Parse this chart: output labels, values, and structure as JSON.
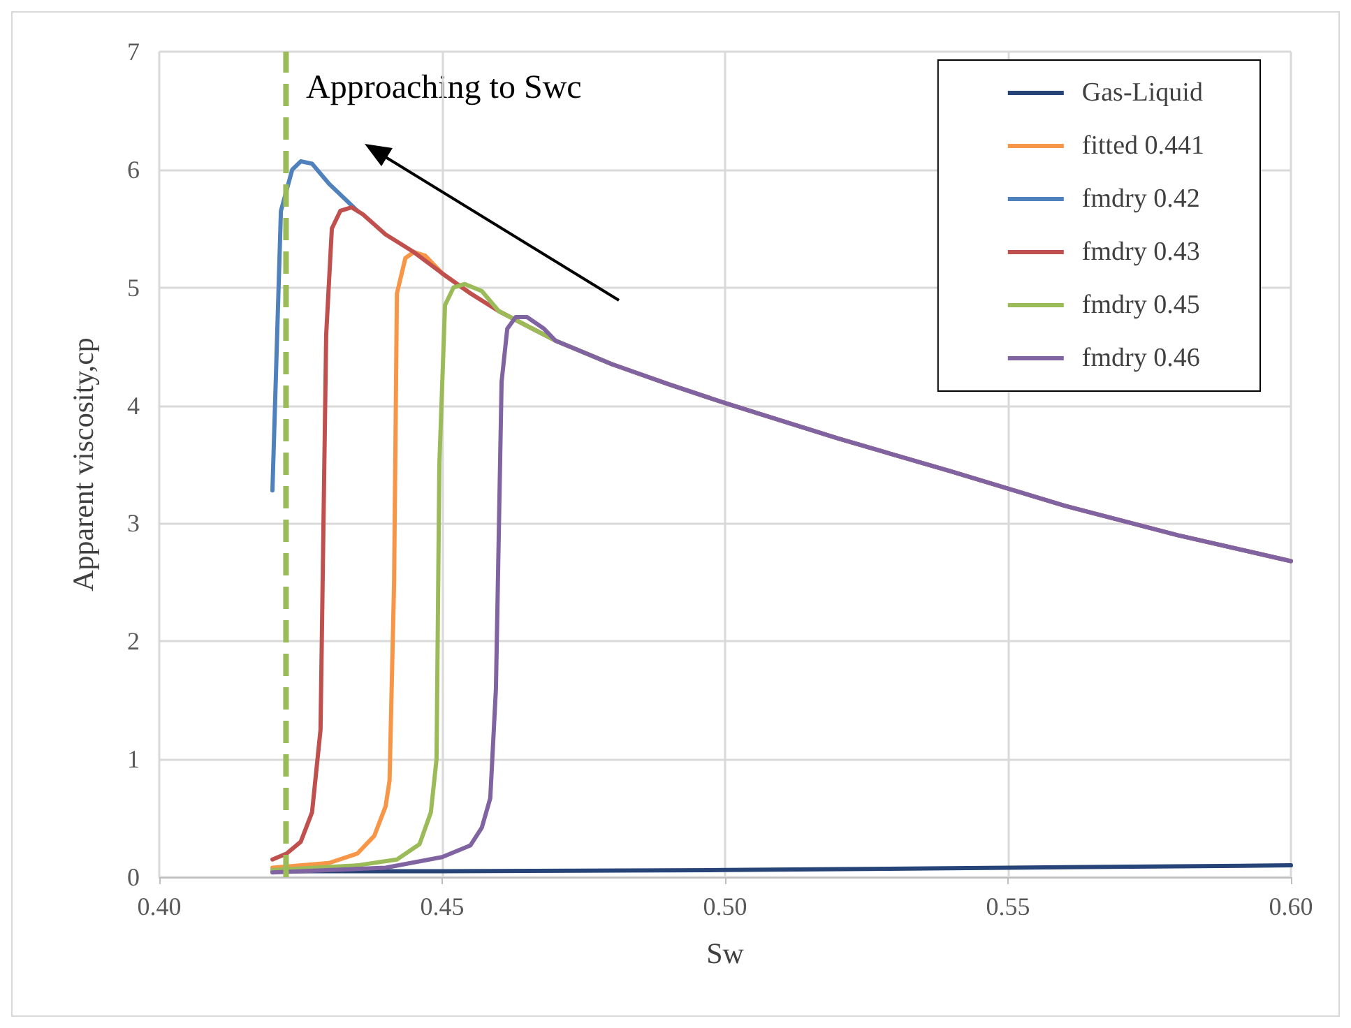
{
  "chart_data": {
    "type": "line",
    "xlabel": "Sw",
    "ylabel": "Apparent viscosity,cp",
    "xlim": [
      0.4,
      0.6
    ],
    "xticks": [
      {
        "value": 0.4,
        "label": "0.40"
      },
      {
        "value": 0.45,
        "label": "0.45"
      },
      {
        "value": 0.5,
        "label": "0.50"
      },
      {
        "value": 0.55,
        "label": "0.55"
      },
      {
        "value": 0.6,
        "label": "0.60"
      }
    ],
    "ylim": [
      0,
      7
    ],
    "yticks": [
      0,
      1,
      2,
      3,
      4,
      5,
      6,
      7
    ],
    "grid": true,
    "legend": "top right",
    "marker": "none",
    "line_style": "solid",
    "annotations": [
      "Approaching to Swc"
    ],
    "ref_lines": [
      {
        "axis": "x",
        "value": 0.4224,
        "color": "#9bbb59",
        "line_style": "dashed"
      }
    ],
    "series": [
      {
        "name": "Gas-Liquid",
        "color": "#264478",
        "x": [
          0.42,
          0.45,
          0.5,
          0.55,
          0.6
        ],
        "values": [
          0.05,
          0.05,
          0.06,
          0.08,
          0.1
        ]
      },
      {
        "name": "fitted 0.441",
        "color": "#f79646",
        "x": [
          0.42,
          0.43,
          0.435,
          0.438,
          0.44,
          0.4407,
          0.4415,
          0.442,
          0.4435,
          0.445,
          0.447,
          0.45,
          0.455
        ],
        "values": [
          0.08,
          0.12,
          0.2,
          0.35,
          0.6,
          0.82,
          2.5,
          4.95,
          5.25,
          5.3,
          5.27,
          5.12,
          4.95
        ]
      },
      {
        "name": "fmdry 0.42",
        "color": "#4f81bd",
        "x": [
          0.42,
          0.4215,
          0.4235,
          0.425,
          0.427,
          0.43,
          0.435
        ],
        "values": [
          3.28,
          5.65,
          6.0,
          6.07,
          6.05,
          5.88,
          5.65
        ]
      },
      {
        "name": "fmdry 0.43",
        "color": "#c0504d",
        "x": [
          0.42,
          0.4225,
          0.425,
          0.427,
          0.4285,
          0.4295,
          0.4305,
          0.432,
          0.434,
          0.436,
          0.44,
          0.445,
          0.45,
          0.455,
          0.46,
          0.47,
          0.48,
          0.49,
          0.5,
          0.52,
          0.54,
          0.56,
          0.58,
          0.6
        ],
        "values": [
          0.15,
          0.2,
          0.3,
          0.55,
          1.25,
          4.6,
          5.5,
          5.65,
          5.68,
          5.62,
          5.45,
          5.3,
          5.12,
          4.95,
          4.8,
          4.55,
          4.35,
          4.18,
          4.02,
          3.72,
          3.44,
          3.15,
          2.9,
          2.68
        ]
      },
      {
        "name": "fmdry 0.45",
        "color": "#9bbb59",
        "x": [
          0.42,
          0.435,
          0.442,
          0.446,
          0.448,
          0.449,
          0.4495,
          0.4505,
          0.452,
          0.454,
          0.457,
          0.46,
          0.47,
          0.48
        ],
        "values": [
          0.06,
          0.1,
          0.15,
          0.28,
          0.55,
          1.0,
          3.5,
          4.85,
          5.0,
          5.03,
          4.97,
          4.8,
          4.55,
          4.35
        ]
      },
      {
        "name": "fmdry 0.46",
        "color": "#8064a2",
        "x": [
          0.42,
          0.44,
          0.45,
          0.455,
          0.457,
          0.4585,
          0.4595,
          0.4605,
          0.4615,
          0.463,
          0.465,
          0.468,
          0.47,
          0.48,
          0.49,
          0.5,
          0.52,
          0.54,
          0.56,
          0.58,
          0.6
        ],
        "values": [
          0.04,
          0.08,
          0.17,
          0.27,
          0.42,
          0.67,
          1.6,
          4.2,
          4.65,
          4.75,
          4.75,
          4.65,
          4.55,
          4.35,
          4.18,
          4.02,
          3.72,
          3.44,
          3.15,
          2.9,
          2.68
        ]
      }
    ]
  }
}
